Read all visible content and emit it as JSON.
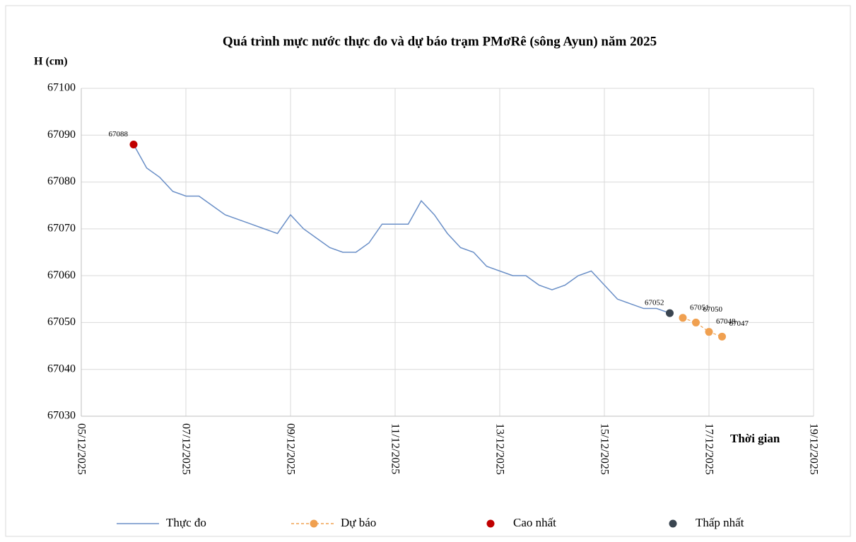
{
  "chart_data": {
    "type": "line",
    "title": "Quá trình mực nước thực đo và dự báo trạm PMơRê (sông Ayun) năm 2025",
    "y_label": "H (cm)",
    "x_label": "Thời gian",
    "xlim": [
      "2025-12-05",
      "2025-12-19"
    ],
    "xticks": [
      {
        "value": "2025-12-05",
        "label": "05/12/2025"
      },
      {
        "value": "2025-12-07",
        "label": "07/12/2025"
      },
      {
        "value": "2025-12-09",
        "label": "09/12/2025"
      },
      {
        "value": "2025-12-11",
        "label": "11/12/2025"
      },
      {
        "value": "2025-12-13",
        "label": "13/12/2025"
      },
      {
        "value": "2025-12-15",
        "label": "15/12/2025"
      },
      {
        "value": "2025-12-17",
        "label": "17/12/2025"
      },
      {
        "value": "2025-12-19",
        "label": "19/12/2025"
      }
    ],
    "ylim": [
      67030,
      67100
    ],
    "yticks": [
      67030,
      67040,
      67050,
      67060,
      67070,
      67080,
      67090,
      67100
    ],
    "grid": true,
    "series": [
      {
        "name": "Thực đo",
        "color": "#6a8fc7",
        "style": "line",
        "x": [
          "2025-12-06T00:00",
          "2025-12-06T06:00",
          "2025-12-06T12:00",
          "2025-12-06T18:00",
          "2025-12-07T00:00",
          "2025-12-07T06:00",
          "2025-12-07T12:00",
          "2025-12-07T18:00",
          "2025-12-08T00:00",
          "2025-12-08T06:00",
          "2025-12-08T12:00",
          "2025-12-08T18:00",
          "2025-12-09T00:00",
          "2025-12-09T06:00",
          "2025-12-09T12:00",
          "2025-12-09T18:00",
          "2025-12-10T00:00",
          "2025-12-10T06:00",
          "2025-12-10T12:00",
          "2025-12-10T18:00",
          "2025-12-11T00:00",
          "2025-12-11T06:00",
          "2025-12-11T12:00",
          "2025-12-11T18:00",
          "2025-12-12T00:00",
          "2025-12-12T06:00",
          "2025-12-12T12:00",
          "2025-12-12T18:00",
          "2025-12-13T00:00",
          "2025-12-13T06:00",
          "2025-12-13T12:00",
          "2025-12-13T18:00",
          "2025-12-14T00:00",
          "2025-12-14T06:00",
          "2025-12-14T12:00",
          "2025-12-14T18:00",
          "2025-12-15T00:00",
          "2025-12-15T06:00",
          "2025-12-15T12:00",
          "2025-12-15T18:00",
          "2025-12-16T00:00",
          "2025-12-16T06:00"
        ],
        "values": [
          67088,
          67083,
          67081,
          67078,
          67077,
          67077,
          67075,
          67073,
          67072,
          67071,
          67070,
          67069,
          67073,
          67070,
          67068,
          67066,
          67065,
          67065,
          67067,
          67071,
          67071,
          67071,
          67076,
          67073,
          67069,
          67066,
          67065,
          67062,
          67061,
          67060,
          67060,
          67058,
          67057,
          67058,
          67060,
          67061,
          67058,
          67055,
          67054,
          67053,
          67053,
          67052
        ]
      },
      {
        "name": "Dự báo",
        "color": "#f0a050",
        "style": "dashed-markers",
        "labels": true,
        "x": [
          "2025-12-16T12:00",
          "2025-12-16T18:00",
          "2025-12-17T00:00",
          "2025-12-17T06:00"
        ],
        "values": [
          67051,
          67050,
          67048,
          67047
        ]
      },
      {
        "name": "Cao nhất",
        "color": "#c00000",
        "style": "marker",
        "labels": true,
        "x": [
          "2025-12-06T00:00"
        ],
        "values": [
          67088
        ]
      },
      {
        "name": "Thấp nhất",
        "color": "#3a4550",
        "style": "marker",
        "labels": true,
        "x": [
          "2025-12-16T06:00"
        ],
        "values": [
          67052
        ]
      }
    ]
  }
}
